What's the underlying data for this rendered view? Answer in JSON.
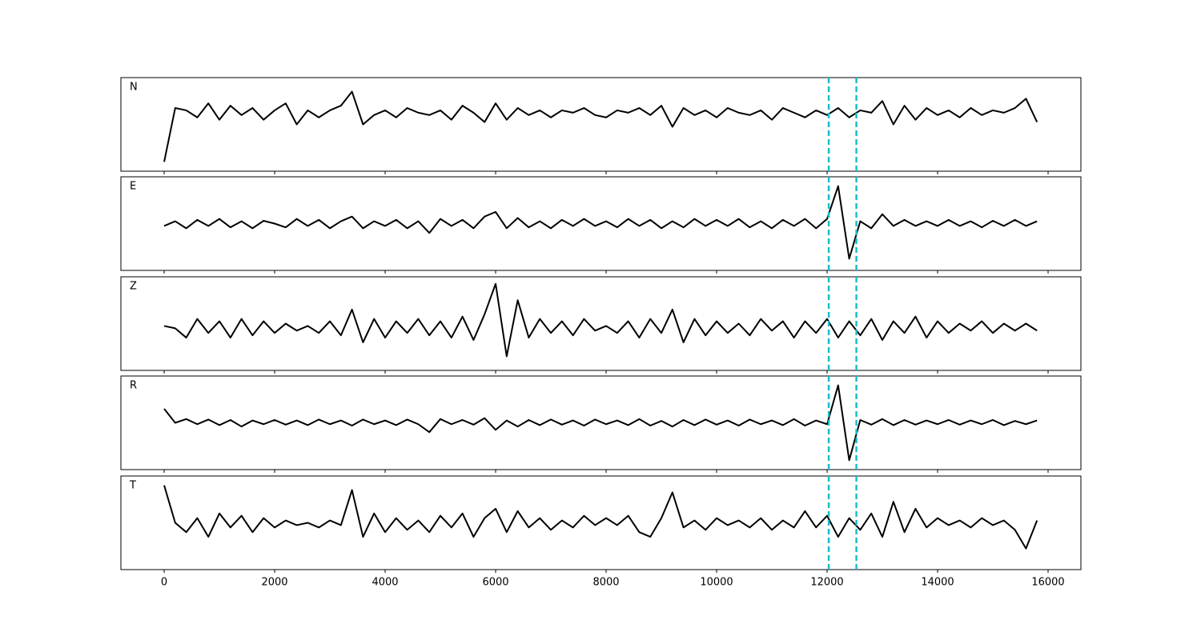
{
  "chart_data": {
    "type": "line",
    "x": [
      0,
      200,
      400,
      600,
      800,
      1000,
      1200,
      1400,
      1600,
      1800,
      2000,
      2200,
      2400,
      2600,
      2800,
      3000,
      3200,
      3400,
      3600,
      3800,
      4000,
      4200,
      4400,
      4600,
      4800,
      5000,
      5200,
      5400,
      5600,
      5800,
      6000,
      6200,
      6400,
      6600,
      6800,
      7000,
      7200,
      7400,
      7600,
      7800,
      8000,
      8200,
      8400,
      8600,
      8800,
      9000,
      9200,
      9400,
      9600,
      9800,
      10000,
      10200,
      10400,
      10600,
      10800,
      11000,
      11200,
      11400,
      11600,
      11800,
      12000,
      12200,
      12400,
      12600,
      12800,
      13000,
      13200,
      13400,
      13600,
      13800,
      14000,
      14200,
      14400,
      14600,
      14800,
      15000,
      15200,
      15400,
      15600,
      15800
    ],
    "xlim": [
      -783,
      16594
    ],
    "xticks": [
      0,
      2000,
      4000,
      6000,
      8000,
      10000,
      12000,
      14000,
      16000
    ],
    "ylim": [
      -1,
      1
    ],
    "vlines": [
      12030,
      12530
    ],
    "vline_color": "#17becf",
    "series": [
      {
        "name": "N",
        "color": "#000000",
        "values": [
          -0.8,
          0.35,
          0.3,
          0.15,
          0.45,
          0.1,
          0.4,
          0.2,
          0.35,
          0.1,
          0.3,
          0.45,
          0.0,
          0.3,
          0.15,
          0.3,
          0.4,
          0.7,
          0.0,
          0.2,
          0.3,
          0.15,
          0.35,
          0.25,
          0.2,
          0.3,
          0.1,
          0.4,
          0.25,
          0.05,
          0.45,
          0.1,
          0.35,
          0.2,
          0.3,
          0.15,
          0.3,
          0.25,
          0.35,
          0.2,
          0.15,
          0.3,
          0.25,
          0.35,
          0.2,
          0.4,
          -0.05,
          0.35,
          0.2,
          0.3,
          0.15,
          0.35,
          0.25,
          0.2,
          0.3,
          0.1,
          0.35,
          0.25,
          0.15,
          0.3,
          0.2,
          0.35,
          0.15,
          0.3,
          0.25,
          0.5,
          0.0,
          0.4,
          0.1,
          0.35,
          0.2,
          0.3,
          0.15,
          0.35,
          0.2,
          0.3,
          0.25,
          0.35,
          0.55,
          0.05
        ]
      },
      {
        "name": "E",
        "color": "#000000",
        "values": [
          -0.05,
          0.05,
          -0.1,
          0.08,
          -0.05,
          0.1,
          -0.08,
          0.05,
          -0.1,
          0.06,
          0.0,
          -0.08,
          0.1,
          -0.05,
          0.08,
          -0.1,
          0.05,
          0.15,
          -0.1,
          0.05,
          -0.05,
          0.08,
          -0.1,
          0.05,
          -0.2,
          0.1,
          -0.05,
          0.08,
          -0.1,
          0.15,
          0.25,
          -0.1,
          0.12,
          -0.08,
          0.05,
          -0.1,
          0.08,
          -0.05,
          0.1,
          -0.05,
          0.05,
          -0.08,
          0.1,
          -0.05,
          0.08,
          -0.1,
          0.05,
          -0.08,
          0.1,
          -0.05,
          0.08,
          -0.05,
          0.1,
          -0.08,
          0.05,
          -0.1,
          0.08,
          -0.05,
          0.1,
          -0.1,
          0.1,
          0.8,
          -0.75,
          0.05,
          -0.1,
          0.2,
          -0.05,
          0.08,
          -0.05,
          0.05,
          -0.05,
          0.08,
          -0.05,
          0.05,
          -0.08,
          0.06,
          -0.05,
          0.08,
          -0.05,
          0.05
        ]
      },
      {
        "name": "Z",
        "color": "#000000",
        "values": [
          -0.05,
          -0.1,
          -0.3,
          0.1,
          -0.2,
          0.05,
          -0.3,
          0.1,
          -0.25,
          0.05,
          -0.2,
          0.0,
          -0.15,
          -0.05,
          -0.2,
          0.05,
          -0.25,
          0.3,
          -0.4,
          0.1,
          -0.3,
          0.05,
          -0.2,
          0.1,
          -0.25,
          0.05,
          -0.3,
          0.15,
          -0.35,
          0.2,
          0.85,
          -0.7,
          0.5,
          -0.3,
          0.1,
          -0.2,
          0.05,
          -0.25,
          0.1,
          -0.15,
          -0.05,
          -0.2,
          0.05,
          -0.3,
          0.1,
          -0.2,
          0.3,
          -0.4,
          0.1,
          -0.25,
          0.05,
          -0.2,
          0.0,
          -0.25,
          0.1,
          -0.15,
          0.05,
          -0.3,
          0.05,
          -0.2,
          0.1,
          -0.3,
          0.05,
          -0.25,
          0.1,
          -0.35,
          0.05,
          -0.2,
          0.15,
          -0.3,
          0.05,
          -0.2,
          0.0,
          -0.15,
          0.05,
          -0.2,
          0.0,
          -0.15,
          0.0,
          -0.15
        ]
      },
      {
        "name": "R",
        "color": "#000000",
        "values": [
          0.3,
          0.0,
          0.08,
          -0.03,
          0.07,
          -0.05,
          0.06,
          -0.08,
          0.05,
          -0.03,
          0.06,
          -0.04,
          0.05,
          -0.05,
          0.07,
          -0.03,
          0.05,
          -0.06,
          0.07,
          -0.03,
          0.05,
          -0.05,
          0.07,
          -0.03,
          -0.2,
          0.08,
          -0.03,
          0.06,
          -0.04,
          0.1,
          -0.15,
          0.05,
          -0.08,
          0.06,
          -0.05,
          0.07,
          -0.04,
          0.05,
          -0.06,
          0.07,
          -0.03,
          0.05,
          -0.05,
          0.08,
          -0.06,
          0.04,
          -0.08,
          0.06,
          -0.05,
          0.07,
          -0.04,
          0.05,
          -0.06,
          0.07,
          -0.03,
          0.05,
          -0.05,
          0.08,
          -0.06,
          0.05,
          -0.03,
          0.8,
          -0.8,
          0.06,
          -0.04,
          0.08,
          -0.05,
          0.06,
          -0.04,
          0.05,
          -0.03,
          0.06,
          -0.04,
          0.05,
          -0.03,
          0.06,
          -0.05,
          0.04,
          -0.03,
          0.05
        ]
      },
      {
        "name": "T",
        "color": "#000000",
        "values": [
          0.8,
          0.0,
          -0.2,
          0.1,
          -0.3,
          0.2,
          -0.1,
          0.15,
          -0.2,
          0.1,
          -0.1,
          0.05,
          -0.05,
          0.0,
          -0.1,
          0.05,
          -0.05,
          0.7,
          -0.3,
          0.2,
          -0.2,
          0.1,
          -0.15,
          0.05,
          -0.2,
          0.15,
          -0.1,
          0.2,
          -0.3,
          0.1,
          0.3,
          -0.2,
          0.25,
          -0.1,
          0.1,
          -0.15,
          0.05,
          -0.1,
          0.15,
          -0.05,
          0.1,
          -0.05,
          0.15,
          -0.2,
          -0.3,
          0.1,
          0.65,
          -0.1,
          0.05,
          -0.15,
          0.1,
          -0.05,
          0.05,
          -0.1,
          0.1,
          -0.15,
          0.05,
          -0.1,
          0.25,
          -0.1,
          0.15,
          -0.3,
          0.1,
          -0.15,
          0.2,
          -0.3,
          0.45,
          -0.2,
          0.3,
          -0.1,
          0.1,
          -0.05,
          0.05,
          -0.1,
          0.1,
          -0.05,
          0.05,
          -0.15,
          -0.55,
          0.05
        ]
      }
    ]
  }
}
